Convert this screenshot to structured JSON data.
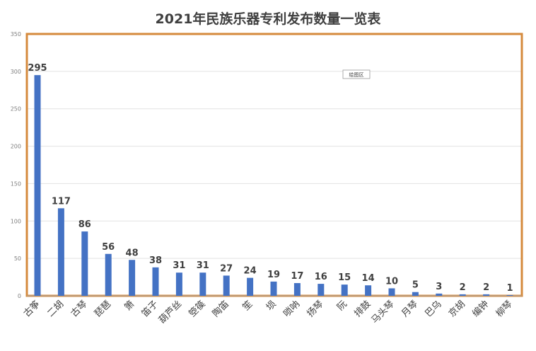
{
  "chart_data": {
    "type": "bar",
    "title": "2021年民族乐器专利发布数量一览表",
    "categories": [
      "古筝",
      "二胡",
      "古琴",
      "琵琶",
      "箫",
      "笛子",
      "葫芦丝",
      "箜篌",
      "陶笛",
      "笙",
      "埙",
      "唢呐",
      "扬琴",
      "阮",
      "排鼓",
      "马头琴",
      "月琴",
      "巴乌",
      "京胡",
      "编钟",
      "柳琴"
    ],
    "values": [
      295,
      117,
      86,
      56,
      48,
      38,
      31,
      31,
      27,
      24,
      19,
      17,
      16,
      15,
      14,
      10,
      5,
      3,
      2,
      2,
      1
    ],
    "ylim": [
      0,
      350
    ],
    "yticks": [
      "0",
      "50",
      "100",
      "150",
      "200",
      "250",
      "300",
      "350"
    ],
    "grid": true,
    "plot_area_label": "绘图区",
    "colors": {
      "bar": "#4472C4",
      "frame": "#D58A3C",
      "grid": "#E2E2E2",
      "axis": "#A6A6A6",
      "text": "#404040"
    }
  }
}
